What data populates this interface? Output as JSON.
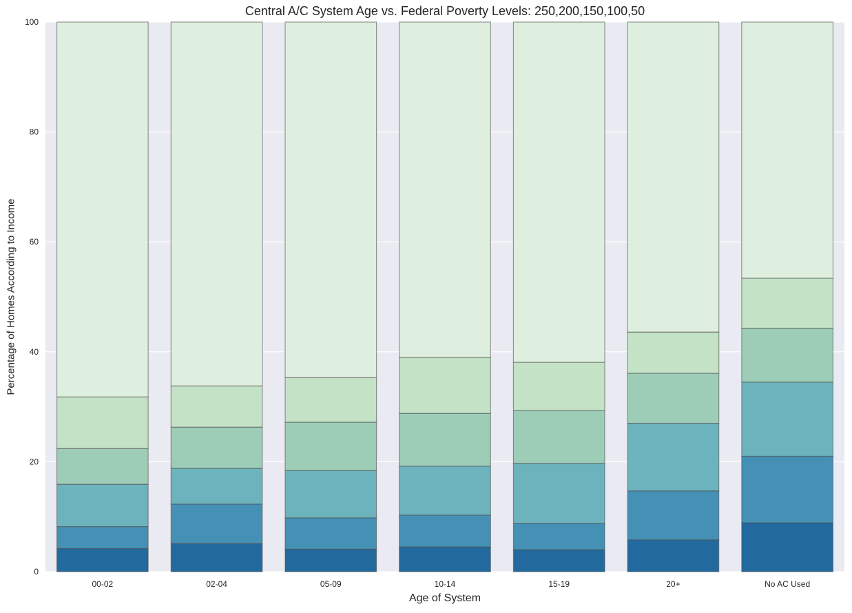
{
  "chart_data": {
    "type": "bar",
    "stacked": true,
    "title": "Central A/C System Age vs. Federal Poverty Levels: 250,200,150,100,50",
    "xlabel": "Age of System",
    "ylabel": "Percentage of Homes According to Income",
    "categories": [
      "00-02",
      "02-04",
      "05-09",
      "10-14",
      "15-19",
      "20+",
      "No AC Used"
    ],
    "ylim": [
      0,
      100
    ],
    "yticks": [
      0,
      20,
      40,
      60,
      80,
      100
    ],
    "grid": true,
    "legend": "none",
    "series": [
      {
        "color": "#226a9e",
        "values": [
          4.2,
          5.1,
          4.1,
          4.5,
          4.0,
          5.8,
          8.9
        ]
      },
      {
        "color": "#4591b5",
        "values": [
          4.0,
          7.2,
          5.7,
          5.8,
          4.8,
          8.9,
          12.1
        ]
      },
      {
        "color": "#6db3bd",
        "values": [
          7.7,
          6.5,
          8.6,
          8.9,
          10.9,
          12.3,
          13.5
        ]
      },
      {
        "color": "#9dcdb7",
        "values": [
          6.5,
          7.5,
          8.8,
          9.6,
          9.6,
          9.1,
          9.8
        ]
      },
      {
        "color": "#c4e2c5",
        "values": [
          9.4,
          7.5,
          8.1,
          10.2,
          8.8,
          7.5,
          9.1
        ]
      },
      {
        "color": "#dfefdf",
        "values": [
          68.2,
          66.2,
          64.7,
          61.0,
          61.9,
          56.4,
          46.6
        ]
      }
    ],
    "colors": {
      "plot_background": "#eaeaf2",
      "grid": "#ffffff",
      "bar_edge": "#4a4a4a"
    }
  }
}
